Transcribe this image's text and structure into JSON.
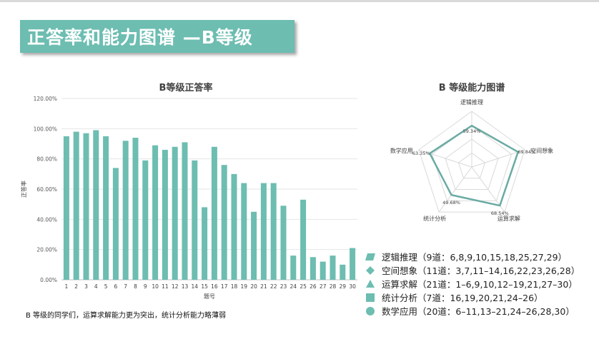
{
  "page": {
    "title": "正答率和能力图谱 —B等级",
    "note": "B 等级的同学们，运算求解能力更为突出，统计分析能力略薄弱"
  },
  "colors": {
    "accent": "#6dbdb1",
    "radar_line": "#6aaba3"
  },
  "chart_data": [
    {
      "type": "bar",
      "title": "B等级正答率",
      "xlabel": "题号",
      "ylabel": "正答率",
      "ylim": [
        0,
        120
      ],
      "yticks": [
        "0.00%",
        "20.00%",
        "40.00%",
        "60.00%",
        "80.00%",
        "100.00%",
        "120.00%"
      ],
      "categories": [
        "1",
        "2",
        "3",
        "4",
        "5",
        "6",
        "7",
        "8",
        "9",
        "10",
        "11",
        "12",
        "13",
        "14",
        "15",
        "16",
        "17",
        "18",
        "19",
        "20",
        "21",
        "22",
        "23",
        "24",
        "25",
        "26",
        "27",
        "28",
        "29",
        "30"
      ],
      "values": [
        95,
        98,
        97,
        99,
        95,
        74,
        92,
        94,
        79,
        89,
        86,
        88,
        91,
        79,
        48,
        88,
        76,
        70,
        64,
        45,
        64,
        64,
        49,
        16,
        53,
        15,
        12,
        16,
        10,
        21
      ],
      "grid": true
    },
    {
      "type": "radar",
      "title": "B 等级能力图谱",
      "axes": [
        "逻辑推理",
        "空间想象",
        "运算求解",
        "统计分析",
        "数学应用"
      ],
      "values": [
        59.34,
        69.84,
        68.54,
        49.68,
        63.35
      ],
      "value_labels": [
        "59.34%",
        "69.84%",
        "68.54%",
        "49.68%",
        "63.35%"
      ],
      "max": 80,
      "rings": 4
    }
  ],
  "legend": [
    {
      "icon": "parallelogram-icon",
      "text": "逻辑推理（9道：6,8,9,10,15,18,25,27,29）"
    },
    {
      "icon": "diamond-icon",
      "text": "空间想象（11道：3,7,11–14,16,22,23,26,28）"
    },
    {
      "icon": "triangle-icon",
      "text": "运算求解（21道：1–6,9,10,12–19,21,27–30）"
    },
    {
      "icon": "square-icon",
      "text": "统计分析（7道：16,19,20,21,24–26）"
    },
    {
      "icon": "circle-icon",
      "text": "数学应用（20道：6–11,13–21,24–26,28,30）"
    }
  ]
}
